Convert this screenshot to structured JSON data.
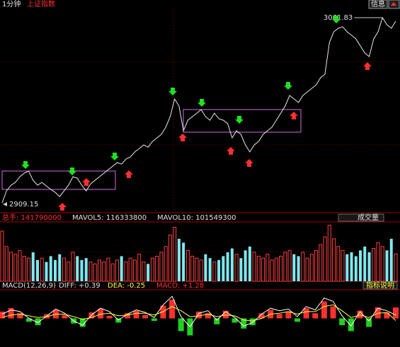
{
  "chart_data": [
    {
      "type": "line",
      "period": "1分钟",
      "title": "上证指数",
      "button": "信息",
      "color": "#e8e8e8",
      "values": [
        2909.15,
        2919,
        2923.7,
        2926,
        2930.7,
        2933.6,
        2935.3,
        2927.7,
        2923.7,
        2926,
        2923.1,
        2920.2,
        2917.8,
        2914.3,
        2919,
        2923.7,
        2930.7,
        2929.5,
        2923.7,
        2919,
        2924.8,
        2927.7,
        2930.7,
        2933.6,
        2936.5,
        2939.4,
        2942.3,
        2941.1,
        2945.2,
        2947,
        2951.1,
        2954,
        2956.9,
        2955.1,
        2959.8,
        2962.7,
        2965.6,
        2971.5,
        2980.2,
        2994.8,
        2989,
        2968.6,
        2977.3,
        2980.2,
        2983.1,
        2986,
        2980.2,
        2977.3,
        2983.1,
        2978.5,
        2977.3,
        2974.4,
        2962.7,
        2968.6,
        2965.6,
        2956.9,
        2951.1,
        2956.9,
        2959.8,
        2965.6,
        2968.6,
        2971.5,
        2977.3,
        2983.1,
        2989,
        2997.7,
        2994.8,
        2991.9,
        2997.7,
        3000.6,
        3003.5,
        3006.4,
        3012.3,
        3015.2,
        3041.4,
        3050.2,
        3053.1,
        3054.3,
        3050.2,
        3047.3,
        3044.3,
        3038.5,
        3032.7,
        3029.8,
        3044.3,
        3050.2,
        3061.83,
        3056,
        3053.1,
        3058.9
      ],
      "ylim": [
        2901.6,
        3069.4
      ],
      "annotations": [
        3061.83,
        2909.15
      ]
    },
    {
      "type": "bar",
      "header": [
        "总手: 141790000",
        "MAVOL5: 116333800",
        "MAVOL10: 101549300"
      ],
      "button": "成交量",
      "up_color": "#ff4040",
      "down_color": "#7fe8f0",
      "values": [
        260000000.0,
        180000000.0,
        150000000.0,
        140000000.0,
        160000000.0,
        130000000.0,
        120000000.0,
        150000000.0,
        110000000.0,
        120000000.0,
        100000000.0,
        130000000.0,
        110000000.0,
        140000000.0,
        120000000.0,
        100000000.0,
        150000000.0,
        130000000.0,
        110000000.0,
        120000000.0,
        100000000.0,
        90000000.0,
        110000000.0,
        100000000.0,
        120000000.0,
        90000000.0,
        110000000.0,
        130000000.0,
        100000000.0,
        120000000.0,
        110000000.0,
        140000000.0,
        100000000.0,
        90000000.0,
        120000000.0,
        130000000.0,
        150000000.0,
        180000000.0,
        240000000.0,
        280000000.0,
        220000000.0,
        200000000.0,
        160000000.0,
        130000000.0,
        120000000.0,
        110000000.0,
        140000000.0,
        120000000.0,
        100000000.0,
        110000000.0,
        130000000.0,
        150000000.0,
        170000000.0,
        140000000.0,
        120000000.0,
        160000000.0,
        180000000.0,
        150000000.0,
        130000000.0,
        120000000.0,
        140000000.0,
        110000000.0,
        120000000.0,
        130000000.0,
        150000000.0,
        160000000.0,
        140000000.0,
        130000000.0,
        150000000.0,
        120000000.0,
        140000000.0,
        160000000.0,
        190000000.0,
        230000000.0,
        290000000.0,
        220000000.0,
        180000000.0,
        160000000.0,
        140000000.0,
        150000000.0,
        130000000.0,
        160000000.0,
        180000000.0,
        150000000.0,
        170000000.0,
        200000000.0,
        180000000.0,
        160000000.0,
        220000000.0,
        141790000
      ],
      "ylim": [
        0,
        300000000.0
      ]
    },
    {
      "type": "macd",
      "header": [
        "MACD(12,26,9)",
        "DIFF: +0.39",
        "DEA: -0.25",
        "MACD: +1.28"
      ],
      "button": "指标说明",
      "ylim": [
        -3.2,
        3.2
      ],
      "series": [
        {
          "color": "#ff3030",
          "values": [
            0.8,
            1.2,
            0.6,
            -0.4,
            -0.8,
            0.5,
            1.0,
            0.4,
            -0.6,
            -1.0,
            0.7,
            1.1,
            0.3,
            -0.5,
            0.6,
            0.9,
            0.4,
            -0.3,
            1.5,
            2.2,
            -1.5,
            -2.0,
            0.8,
            0.6,
            -0.7,
            0.9,
            -0.5,
            -1.2,
            -0.8,
            0.6,
            1.0,
            0.5,
            0.8,
            -0.4,
            1.2,
            0.6,
            2.0,
            1.4,
            -0.8,
            -1.5,
            0.9,
            -1.0,
            1.3,
            0.7,
            1.28
          ]
        },
        {
          "color": "#ffffff",
          "values": [
            0.5,
            1.0,
            0.8,
            0.0,
            -0.5,
            0.3,
            1.1,
            0.6,
            -0.3,
            -0.8,
            0.4,
            1.2,
            0.8,
            -0.2,
            0.5,
            1.0,
            0.7,
            0.1,
            1.6,
            2.6,
            0.2,
            -1.0,
            0.6,
            0.9,
            -0.2,
            0.8,
            0.1,
            -0.9,
            -0.5,
            0.5,
            1.2,
            0.9,
            1.1,
            0.2,
            1.4,
            1.0,
            2.4,
            2.0,
            0.3,
            -0.9,
            0.8,
            -0.3,
            1.2,
            0.9,
            0.39
          ]
        },
        {
          "color": "#ffff40",
          "values": [
            0.1,
            0.4,
            0.5,
            0.3,
            0.1,
            0.2,
            0.5,
            0.5,
            0.2,
            -0.1,
            0.1,
            0.5,
            0.6,
            0.3,
            0.4,
            0.6,
            0.6,
            0.4,
            0.8,
            1.4,
            0.9,
            0.2,
            0.3,
            0.5,
            0.2,
            0.4,
            0.3,
            -0.2,
            -0.3,
            0.0,
            0.5,
            0.6,
            0.8,
            0.5,
            0.8,
            0.8,
            1.4,
            1.6,
            0.9,
            0.1,
            0.4,
            0.1,
            0.6,
            0.7,
            -0.25
          ]
        }
      ],
      "down_color": "#20d020"
    }
  ]
}
